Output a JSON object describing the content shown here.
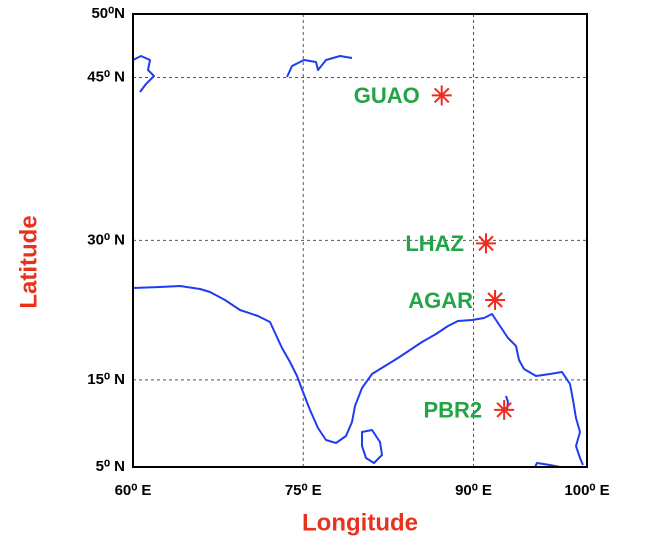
{
  "map": {
    "x_label": "Longitude",
    "y_label": "Latitude",
    "projection": "mercator",
    "xlim": [
      60,
      100
    ],
    "ylim": [
      5,
      50
    ],
    "xticks": [
      {
        "value": 60,
        "label": "60⁰ E"
      },
      {
        "value": 75,
        "label": "75⁰ E"
      },
      {
        "value": 90,
        "label": "90⁰ E"
      },
      {
        "value": 100,
        "label": "100⁰ E"
      }
    ],
    "yticks": [
      {
        "value": 5,
        "label": "5⁰ N"
      },
      {
        "value": 15,
        "label": "15⁰ N"
      },
      {
        "value": 30,
        "label": "30⁰ N"
      },
      {
        "value": 45,
        "label": "45⁰ N"
      },
      {
        "value": 50,
        "label": "50⁰N"
      }
    ],
    "grid": true,
    "marker_color": "#f02a1e",
    "label_color": "#22a447",
    "stations": [
      {
        "name": "GUAO",
        "lon": 87.2,
        "lat": 43.5
      },
      {
        "name": "LHAZ",
        "lon": 91.1,
        "lat": 29.7
      },
      {
        "name": "AGAR",
        "lon": 91.9,
        "lat": 23.8
      },
      {
        "name": "PBR2",
        "lon": 92.7,
        "lat": 11.6
      }
    ]
  }
}
